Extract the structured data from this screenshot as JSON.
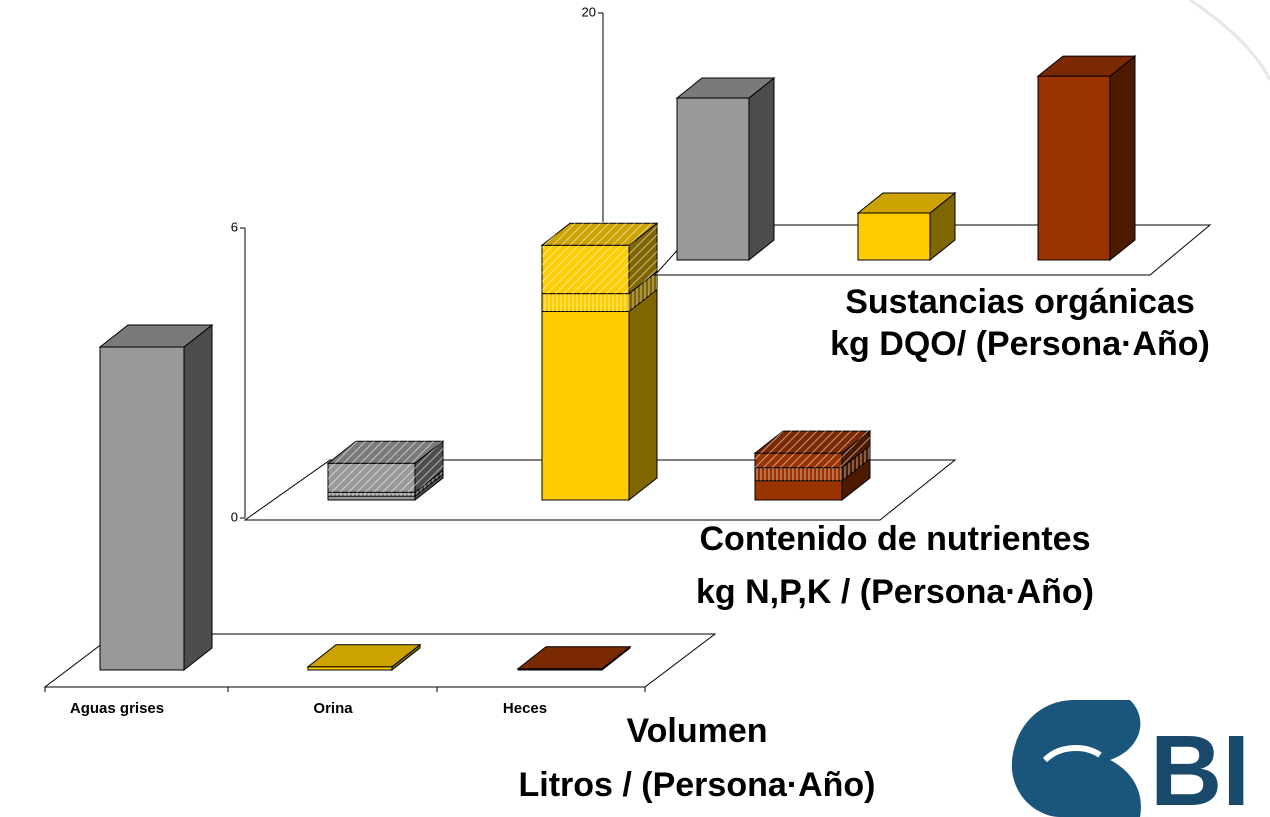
{
  "logo_text": "BI",
  "chart_data": [
    {
      "type": "bar",
      "title": "Volumen",
      "subtitle": "Litros / (Persona·Año)",
      "categories": [
        "Aguas grises",
        "Orina",
        "Heces"
      ],
      "values": [
        100,
        1,
        0.4
      ],
      "colors": [
        "#999999",
        "#ffcc00",
        "#993300"
      ],
      "ylim": [
        0,
        100
      ]
    },
    {
      "type": "stacked",
      "title": "Contenido de nutrientes",
      "subtitle": "kg N,P,K / (Persona·Año)",
      "categories": [
        "Aguas grises",
        "Orina",
        "Heces"
      ],
      "colors": [
        "#999999",
        "#ffcc00",
        "#993300"
      ],
      "series": [
        {
          "pattern": "solid",
          "values": [
            0.08,
            3.9,
            0.4
          ]
        },
        {
          "pattern": "lines",
          "values": [
            0.08,
            0.37,
            0.27
          ]
        },
        {
          "pattern": "hatch",
          "values": [
            0.6,
            1.0,
            0.3
          ]
        }
      ],
      "ylim": [
        0,
        6
      ],
      "yticks": [
        0,
        6
      ]
    },
    {
      "type": "bar",
      "title": "Sustancias orgánicas",
      "subtitle": "kg DQO/ (Persona·Año)",
      "categories": [
        "Aguas grises",
        "Orina",
        "Heces"
      ],
      "values": [
        15.5,
        4.5,
        17.6
      ],
      "colors": [
        "#999999",
        "#ffcc00",
        "#993300"
      ],
      "ylim": [
        0,
        20
      ],
      "yticks": [
        20
      ]
    }
  ]
}
